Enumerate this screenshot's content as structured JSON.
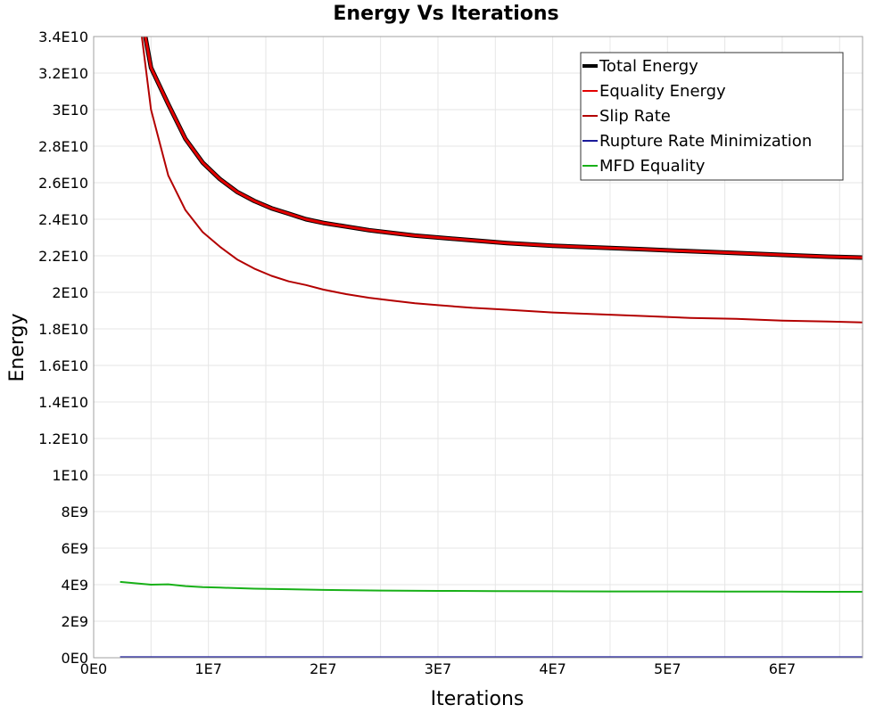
{
  "chart_data": {
    "type": "line",
    "title": "Energy Vs Iterations",
    "xlabel": "Iterations",
    "ylabel": "Energy",
    "xlim": [
      0,
      67000000
    ],
    "ylim": [
      0,
      34000000000
    ],
    "grid": true,
    "legend_position": "top-right",
    "x_ticks": [
      0,
      10000000,
      20000000,
      30000000,
      40000000,
      50000000,
      60000000
    ],
    "x_tick_labels": [
      "0E0",
      "1E7",
      "2E7",
      "3E7",
      "4E7",
      "5E7",
      "6E7"
    ],
    "y_ticks": [
      0,
      2000000000,
      4000000000,
      6000000000,
      8000000000,
      10000000000,
      12000000000,
      14000000000,
      16000000000,
      18000000000,
      20000000000,
      22000000000,
      24000000000,
      26000000000,
      28000000000,
      30000000000,
      32000000000,
      34000000000
    ],
    "y_tick_labels": [
      "0E0",
      "2E9",
      "4E9",
      "6E9",
      "8E9",
      "1E10",
      "1.2E10",
      "1.4E10",
      "1.6E10",
      "1.8E10",
      "2E10",
      "2.2E10",
      "2.4E10",
      "2.6E10",
      "2.8E10",
      "3E10",
      "3.2E10",
      "3.4E10"
    ],
    "series": [
      {
        "name": "Total Energy",
        "color": "#000000",
        "width": 5,
        "x": [
          4500000,
          5000000,
          6500000,
          8000000,
          9500000,
          11000000,
          12500000,
          14000000,
          15500000,
          17000000,
          18500000,
          20000000,
          22000000,
          24000000,
          26000000,
          28000000,
          30000000,
          33000000,
          36000000,
          40000000,
          44000000,
          48000000,
          52000000,
          56000000,
          60000000,
          64000000,
          67000000
        ],
        "y": [
          34000000000,
          32300000000,
          30300000000,
          28400000000,
          27100000000,
          26200000000,
          25500000000,
          25000000000,
          24600000000,
          24300000000,
          24000000000,
          23800000000,
          23600000000,
          23400000000,
          23250000000,
          23100000000,
          23000000000,
          22850000000,
          22700000000,
          22550000000,
          22450000000,
          22350000000,
          22250000000,
          22150000000,
          22050000000,
          21950000000,
          21900000000
        ]
      },
      {
        "name": "Equality Energy",
        "color": "#e30000",
        "width": 3,
        "x": [
          4500000,
          5000000,
          6500000,
          8000000,
          9500000,
          11000000,
          12500000,
          14000000,
          15500000,
          17000000,
          18500000,
          20000000,
          22000000,
          24000000,
          26000000,
          28000000,
          30000000,
          33000000,
          36000000,
          40000000,
          44000000,
          48000000,
          52000000,
          56000000,
          60000000,
          64000000,
          67000000
        ],
        "y": [
          34000000000,
          32300000000,
          30300000000,
          28400000000,
          27100000000,
          26200000000,
          25500000000,
          25000000000,
          24600000000,
          24300000000,
          24000000000,
          23800000000,
          23600000000,
          23400000000,
          23250000000,
          23100000000,
          23000000000,
          22850000000,
          22700000000,
          22550000000,
          22450000000,
          22350000000,
          22250000000,
          22150000000,
          22050000000,
          21950000000,
          21900000000
        ]
      },
      {
        "name": "Slip Rate",
        "color": "#b30000",
        "width": 2,
        "x": [
          4200000,
          5000000,
          6500000,
          8000000,
          9500000,
          11000000,
          12500000,
          14000000,
          15500000,
          17000000,
          18500000,
          20000000,
          22000000,
          24000000,
          26000000,
          28000000,
          30000000,
          33000000,
          36000000,
          40000000,
          44000000,
          48000000,
          52000000,
          56000000,
          60000000,
          64000000,
          67000000
        ],
        "y": [
          34000000000,
          30000000000,
          26400000000,
          24500000000,
          23300000000,
          22500000000,
          21800000000,
          21300000000,
          20900000000,
          20600000000,
          20400000000,
          20150000000,
          19900000000,
          19700000000,
          19550000000,
          19400000000,
          19300000000,
          19150000000,
          19050000000,
          18900000000,
          18800000000,
          18700000000,
          18600000000,
          18550000000,
          18450000000,
          18400000000,
          18350000000
        ]
      },
      {
        "name": "Rupture Rate Minimization",
        "color": "#1a1a9a",
        "width": 2,
        "x": [
          2300000,
          67000000
        ],
        "y": [
          30000000,
          30000000
        ]
      },
      {
        "name": "MFD Equality",
        "color": "#18b018",
        "width": 2,
        "x": [
          2300000,
          5000000,
          6500000,
          8000000,
          9500000,
          11000000,
          14000000,
          17000000,
          20000000,
          25000000,
          30000000,
          35000000,
          40000000,
          45000000,
          50000000,
          55000000,
          60000000,
          64000000,
          67000000
        ],
        "y": [
          4150000000,
          4000000000,
          4020000000,
          3920000000,
          3870000000,
          3840000000,
          3780000000,
          3750000000,
          3710000000,
          3680000000,
          3660000000,
          3650000000,
          3640000000,
          3630000000,
          3630000000,
          3620000000,
          3620000000,
          3610000000,
          3610000000
        ]
      }
    ]
  }
}
